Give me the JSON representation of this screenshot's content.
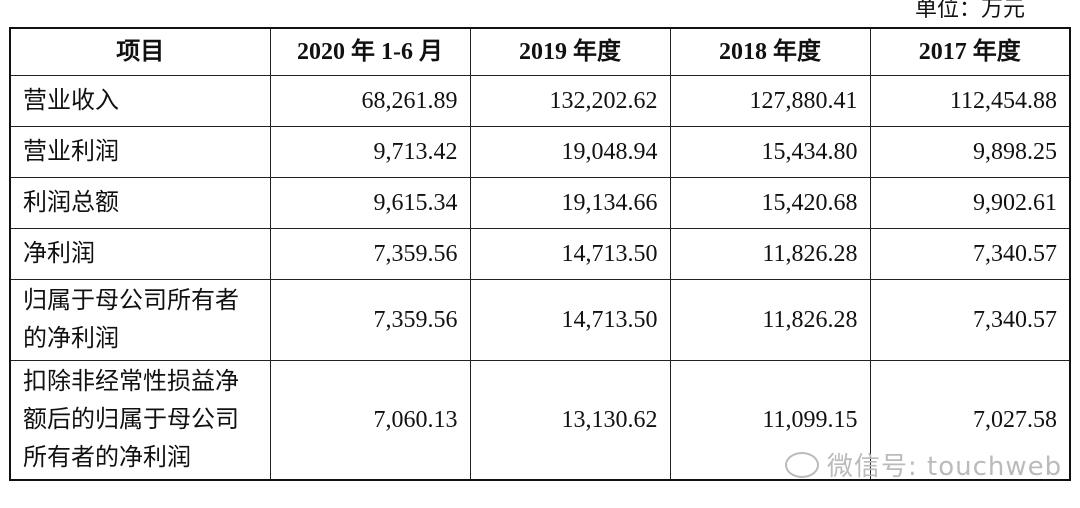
{
  "unit": "单位：万元",
  "table": {
    "header": [
      "项目",
      "2020 年 1-6 月",
      "2019 年度",
      "2018 年度",
      "2017 年度"
    ],
    "rows": [
      [
        "营业收入",
        "68,261.89",
        "132,202.62",
        "127,880.41",
        "112,454.88"
      ],
      [
        "营业利润",
        "9,713.42",
        "19,048.94",
        "15,434.80",
        "9,898.25"
      ],
      [
        "利润总额",
        "9,615.34",
        "19,134.66",
        "15,420.68",
        "9,902.61"
      ],
      [
        "净利润",
        "7,359.56",
        "14,713.50",
        "11,826.28",
        "7,340.57"
      ],
      [
        "归属于母公司所有者的净利润",
        "7,359.56",
        "14,713.50",
        "11,826.28",
        "7,340.57"
      ],
      [
        "扣除非经常性损益净额后的归属于母公司所有者的净利润",
        "7,060.13",
        "13,130.62",
        "11,099.15",
        "7,027.58"
      ]
    ]
  },
  "watermark": "微信号: touchweb"
}
